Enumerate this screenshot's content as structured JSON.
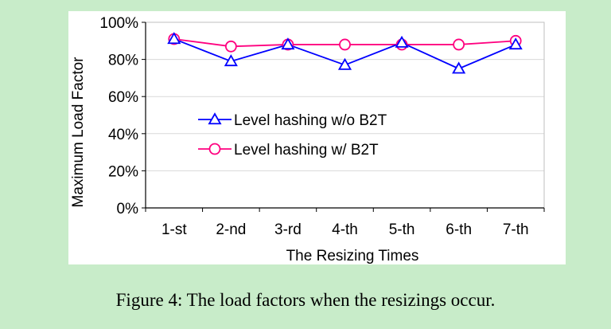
{
  "caption": "Figure 4:  The load factors when the resizings occur.",
  "chart_data": {
    "type": "line",
    "xlabel": "The Resizing Times",
    "ylabel": "Maximum Load Factor",
    "categories": [
      "1-st",
      "2-nd",
      "3-rd",
      "4-th",
      "5-th",
      "6-th",
      "7-th"
    ],
    "ylim": [
      0,
      100
    ],
    "yticks": [
      "0%",
      "20%",
      "40%",
      "60%",
      "80%",
      "100%"
    ],
    "grid": true,
    "legend_position": "center-left",
    "series": [
      {
        "name": "Level hashing w/o B2T",
        "color": "#0000ff",
        "marker": "triangle",
        "values": [
          91,
          79,
          88,
          77,
          89,
          75,
          88
        ]
      },
      {
        "name": "Level hashing w/ B2T",
        "color": "#ff007f",
        "marker": "circle",
        "values": [
          91,
          87,
          88,
          88,
          88,
          88,
          90
        ]
      }
    ]
  }
}
